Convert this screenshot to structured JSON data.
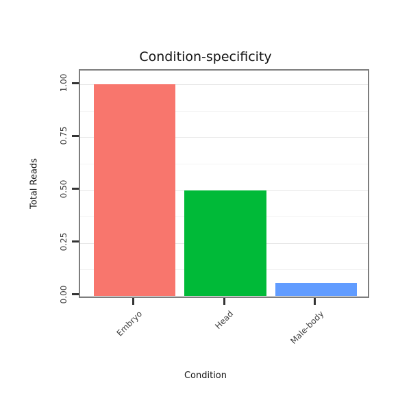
{
  "chart_data": {
    "type": "bar",
    "title": "Condition-specificity",
    "categories": [
      "Embryo",
      "Head",
      "Male-body"
    ],
    "values": [
      1.0,
      0.5,
      0.06
    ],
    "bar_colors": [
      "#F8766D",
      "#00BA38",
      "#619CFF"
    ],
    "xlabel": "Condition",
    "ylabel": "Total Reads",
    "ylim": [
      0,
      1.0
    ],
    "yticks": [
      0,
      0.25,
      0.5,
      0.75,
      1.0
    ],
    "ytick_labels": [
      "0.00",
      "0.25",
      "0.50",
      "0.75",
      "1.00"
    ],
    "yticks_minor": [
      0.125,
      0.375,
      0.625,
      0.875
    ],
    "grid": "on",
    "legend": "none",
    "panel_border_color": "#7d7d7d",
    "grid_major_color": "#e7e7e7",
    "grid_minor_color": "#f3f3f3",
    "tick_color": "#333333",
    "background_color": "#ffffff"
  }
}
